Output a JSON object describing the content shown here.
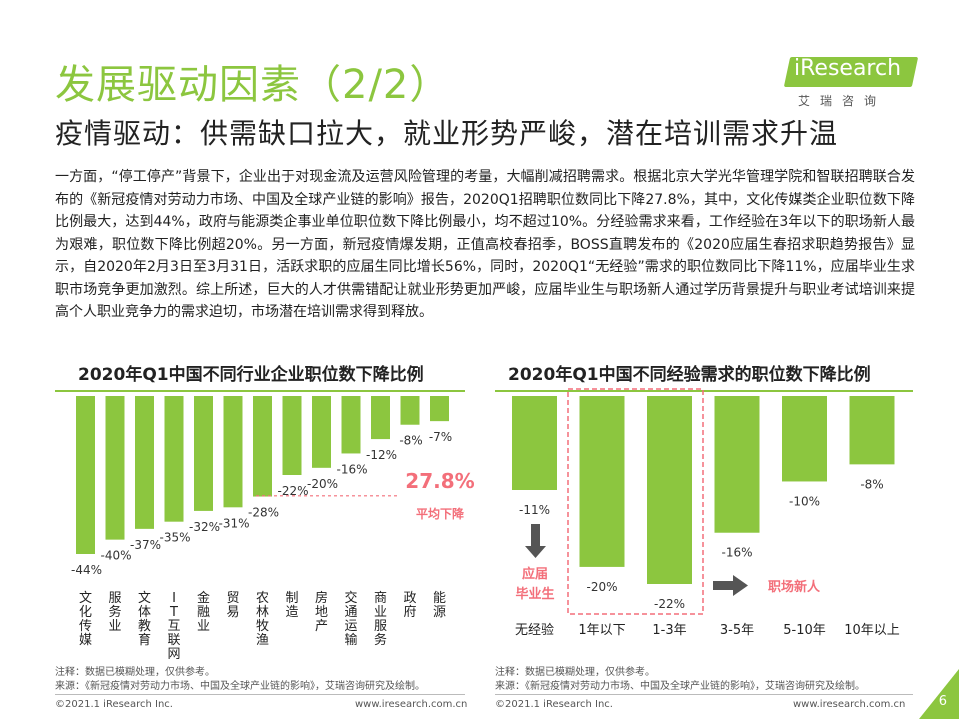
{
  "header": {
    "title": "发展驱动因素（2/2）",
    "subtitle": "疫情驱动：供需缺口拉大，就业形势严峻，潜在培训需求升温"
  },
  "logo": {
    "name": "iResearch",
    "sub": "艾瑞咨询"
  },
  "body_text": "一方面，“停工停产”背景下，企业出于对现金流及运营风险管理的考量，大幅削减招聘需求。根据北京大学光华管理学院和智联招聘联合发布的《新冠疫情对劳动力市场、中国及全球产业链的影响》报告，2020Q1招聘职位数同比下降27.8%，其中，文化传媒类企业职位数下降比例最大，达到44%，政府与能源类企事业单位职位数下降比例最小，均不超过10%。分经验需求来看，工作经验在3年以下的职场新人最为艰难，职位数下降比例超20%。另一方面，新冠疫情爆发期，正值高校春招季，BOSS直聘发布的《2020应届生春招求职趋势报告》显示，自2020年2月3日至3月31日，活跃求职的应届生同比增长56%，同时，2020Q1“无经验”需求的职位数同比下降11%，应届毕业生求职市场竞争更加激烈。综上所述，巨大的人才供需错配让就业形势更加严峻，应届毕业生与职场新人通过学历背景提升与职业考试培训来提高个人职业竞争力的需求迫切，市场潜在培训需求得到释放。",
  "colors": {
    "accent": "#8cc63f",
    "highlight": "#f36f7a",
    "arrow": "#555555"
  },
  "chart_data": [
    {
      "type": "bar",
      "title": "2020年Q1中国不同行业企业职位数下降比例",
      "categories": [
        "文化传媒",
        "服务业",
        "文体教育",
        "IT互联网",
        "金融业",
        "贸易",
        "农林牧渔",
        "制造",
        "房地产",
        "交通运输",
        "商业服务",
        "政府",
        "能源"
      ],
      "values": [
        -44,
        -40,
        -37,
        -35,
        -32,
        -31,
        -28,
        -22,
        -20,
        -16,
        -12,
        -8,
        -7
      ],
      "value_labels": [
        "-44%",
        "-40%",
        "-37%",
        "-35%",
        "-32%",
        "-31%",
        "-28%",
        "-22%",
        "-20%",
        "-16%",
        "-12%",
        "-8%",
        "-7%"
      ],
      "average_value": -27.8,
      "average_label": "27.8%",
      "average_caption": "平均下降",
      "ylim": [
        -50,
        0
      ]
    },
    {
      "type": "bar",
      "title": "2020年Q1中国不同经验需求的职位数下降比例",
      "categories": [
        "无经验",
        "1年以下",
        "1-3年",
        "3-5年",
        "5-10年",
        "10年以上"
      ],
      "values": [
        -11,
        -20,
        -22,
        -16,
        -10,
        -8
      ],
      "value_labels": [
        "-11%",
        "-20%",
        "-22%",
        "-16%",
        "-10%",
        "-8%"
      ],
      "annotations": [
        {
          "text": "应届毕业生",
          "lines": [
            "应届",
            "毕业生"
          ]
        },
        {
          "text": "职场新人"
        }
      ],
      "ylim": [
        -25,
        0
      ]
    }
  ],
  "footer": {
    "left_note": "注释：数据已模糊处理，仅供参考。",
    "left_source": "来源：《新冠疫情对劳动力市场、中国及全球产业链的影响》，艾瑞咨询研究及绘制。",
    "right_note": "注释：数据已模糊处理，仅供参考。",
    "right_source": "来源：《新冠疫情对劳动力市场、中国及全球产业链的影响》，艾瑞咨询研究及绘制。",
    "copyright_left": "©2021.1 iResearch Inc.",
    "url_left": "www.iresearch.com.cn",
    "copyright_right": "©2021.1 iResearch Inc.",
    "url_right": "www.iresearch.com.cn",
    "page": "6"
  }
}
